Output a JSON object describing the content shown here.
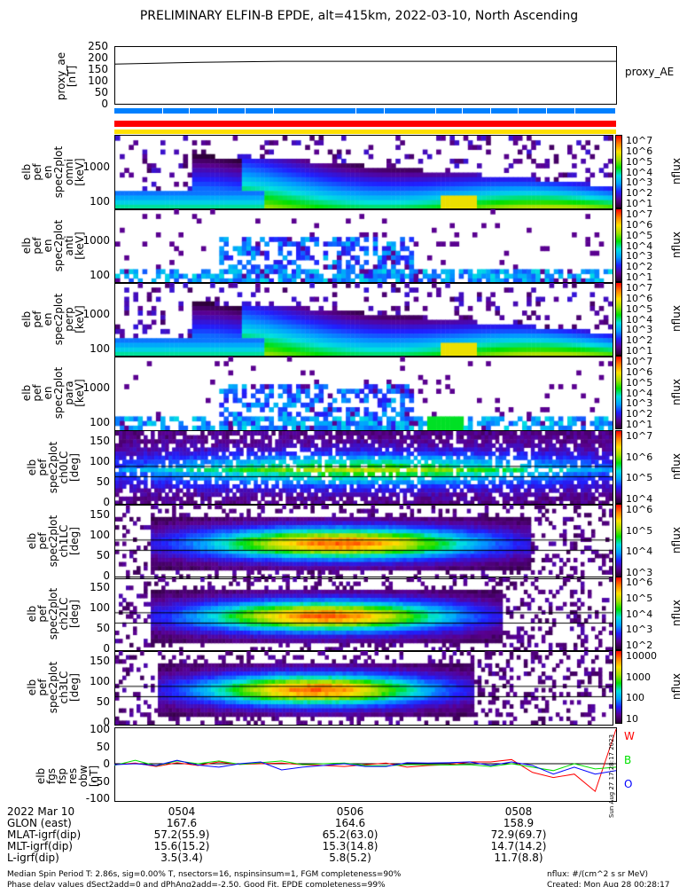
{
  "title": "PRELIMINARY ELFIN-B EPDE, alt=415km, 2022-03-10, North Ascending",
  "proxy_panel": {
    "ylabel": "proxy_ae\n[nT]",
    "legend": "proxy_AE",
    "yticks": [
      "250",
      "200",
      "150",
      "100",
      "50",
      "0"
    ]
  },
  "spec_panels": [
    {
      "ylabel": "elb\npef\nen\nspec2plot\nomni\n[keV]",
      "yticks": [
        "1000",
        "100"
      ],
      "cb_ticks": [
        "10^7",
        "10^6",
        "10^5",
        "10^4",
        "10^3",
        "10^2",
        "10^1"
      ],
      "cb_label": "nflux"
    },
    {
      "ylabel": "elb\npef\nen\nspec2plot\nanti\n[keV]",
      "yticks": [
        "1000",
        "100"
      ],
      "cb_ticks": [
        "10^7",
        "10^6",
        "10^5",
        "10^4",
        "10^3",
        "10^2",
        "10^1"
      ],
      "cb_label": "nflux"
    },
    {
      "ylabel": "elb\npef\nen\nspec2plot\nperp\n[keV]",
      "yticks": [
        "1000",
        "100"
      ],
      "cb_ticks": [
        "10^7",
        "10^6",
        "10^5",
        "10^4",
        "10^3",
        "10^2",
        "10^1"
      ],
      "cb_label": "nflux"
    },
    {
      "ylabel": "elb\npef\nen\nspec2plot\npara\n[keV]",
      "yticks": [
        "1000",
        "100"
      ],
      "cb_ticks": [
        "10^7",
        "10^6",
        "10^5",
        "10^4",
        "10^3",
        "10^2",
        "10^1"
      ],
      "cb_label": "nflux"
    }
  ],
  "pa_panels": [
    {
      "ylabel": "elb\npef\nspec2plot\nch0LC\n[deg]",
      "yticks": [
        "150",
        "100",
        "50",
        "0"
      ],
      "cb_ticks": [
        "10^7",
        "10^6",
        "10^5",
        "10^4"
      ],
      "cb_label": "nflux"
    },
    {
      "ylabel": "elb\npef\nspec2plot\nch1LC\n[deg]",
      "yticks": [
        "150",
        "100",
        "50",
        "0"
      ],
      "cb_ticks": [
        "10^6",
        "10^5",
        "10^4",
        "10^3"
      ],
      "cb_label": "nflux"
    },
    {
      "ylabel": "elb\npef\nspec2plot\nch2LC\n[deg]",
      "yticks": [
        "150",
        "100",
        "50",
        "0"
      ],
      "cb_ticks": [
        "10^6",
        "10^5",
        "10^4",
        "10^3",
        "10^2"
      ],
      "cb_label": "nflux"
    },
    {
      "ylabel": "elb\npef\nspec2plot\nch3LC\n[deg]",
      "yticks": [
        "150",
        "100",
        "50",
        "0"
      ],
      "cb_ticks": [
        "10000",
        "1000",
        "100",
        "10"
      ],
      "cb_label": "nflux"
    }
  ],
  "fgm_panel": {
    "ylabel": "elb\nfgs\nfsp\nres\nobw\n[nT]",
    "yticks": [
      "100",
      "50",
      "0",
      "-50",
      "-100"
    ],
    "legend": [
      {
        "label": "W",
        "color": "#ff0000"
      },
      {
        "label": "B",
        "color": "#00e000"
      },
      {
        "label": "O",
        "color": "#0000ff"
      }
    ],
    "side_stamp": "Sun Aug 27 17:28:17 2023"
  },
  "annotation": {
    "rows": [
      "2022 Mar 10",
      "GLON (east)",
      "MLAT-igrf(dip)",
      "MLT-igrf(dip)",
      "L-igrf(dip)"
    ],
    "columns": [
      [
        "0504",
        "167.6",
        "57.2(55.9)",
        "15.6(15.2)",
        "3.5(3.4)"
      ],
      [
        "0506",
        "164.6",
        "65.2(63.0)",
        "15.3(14.8)",
        "5.8(5.2)"
      ],
      [
        "0508",
        "158.9",
        "72.9(69.7)",
        "14.7(14.2)",
        "11.7(8.8)"
      ]
    ]
  },
  "footer": {
    "line1": "Median Spin Period T: 2.86s, sig=0.00% T, nsectors=16, nspinsinsum=1, FGM completeness=90%",
    "line2": "Phase delay values dSect2add=0 and dPhAng2add=-2.50, Good Fit, EPDE completeness=99%",
    "units": "nflux: #/(cm^2 s sr MeV)",
    "created": "Created: Mon Aug 28 00:28:17 2023"
  },
  "colors": {
    "bar_blue": "#0080ff",
    "bar_red": "#ff0000",
    "bar_yellow": "#ffe000"
  },
  "chart_data": [
    {
      "type": "line",
      "title": "proxy_AE",
      "ylabel": "proxy_ae [nT]",
      "ylim": [
        0,
        250
      ],
      "x": [
        "0503",
        "0504",
        "0505",
        "0506",
        "0507",
        "0508",
        "0509"
      ],
      "values": [
        172,
        180,
        184,
        184,
        184,
        184,
        184
      ]
    },
    {
      "type": "heatmap",
      "title": "spec2plot omni",
      "ylabel": "en [keV]",
      "yscale": "log",
      "zlim": [
        10,
        10000000.0
      ]
    },
    {
      "type": "heatmap",
      "title": "spec2plot anti",
      "ylabel": "en [keV]",
      "yscale": "log",
      "zlim": [
        10,
        10000000.0
      ]
    },
    {
      "type": "heatmap",
      "title": "spec2plot perp",
      "ylabel": "en [keV]",
      "yscale": "log",
      "zlim": [
        10,
        10000000.0
      ]
    },
    {
      "type": "heatmap",
      "title": "spec2plot para",
      "ylabel": "en [keV]",
      "yscale": "log",
      "zlim": [
        10,
        10000000.0
      ]
    },
    {
      "type": "heatmap",
      "title": "ch0LC",
      "ylabel": "[deg]",
      "ylim": [
        0,
        180
      ],
      "zlim": [
        10000.0,
        10000000.0
      ]
    },
    {
      "type": "heatmap",
      "title": "ch1LC",
      "ylabel": "[deg]",
      "ylim": [
        0,
        180
      ],
      "zlim": [
        1000.0,
        1000000.0
      ]
    },
    {
      "type": "heatmap",
      "title": "ch2LC",
      "ylabel": "[deg]",
      "ylim": [
        0,
        180
      ],
      "zlim": [
        100.0,
        1000000.0
      ]
    },
    {
      "type": "heatmap",
      "title": "ch3LC",
      "ylabel": "[deg]",
      "ylim": [
        0,
        180
      ],
      "zlim": [
        10,
        10000.0
      ]
    },
    {
      "type": "line",
      "title": "fgs res obw",
      "ylabel": "[nT]",
      "ylim": [
        -110,
        110
      ],
      "series": [
        {
          "name": "W",
          "values": [
            -3,
            2,
            -8,
            3,
            -5,
            5,
            -2,
            0,
            2,
            -3,
            -5,
            -8,
            -3,
            2,
            -10,
            -5,
            -3,
            5,
            5,
            12,
            -25,
            -40,
            -30,
            -80,
            100
          ]
        },
        {
          "name": "B",
          "values": [
            -5,
            10,
            -6,
            8,
            0,
            8,
            -2,
            3,
            8,
            -3,
            0,
            2,
            -5,
            -6,
            -3,
            -3,
            -4,
            -3,
            -8,
            0,
            -10,
            -20,
            0,
            -15,
            -10
          ]
        },
        {
          "name": "O",
          "values": [
            -3,
            0,
            -5,
            10,
            -4,
            -10,
            0,
            5,
            -18,
            -10,
            -5,
            0,
            -8,
            -8,
            3,
            2,
            3,
            5,
            -5,
            5,
            -5,
            -30,
            -10,
            -30,
            -20
          ]
        }
      ]
    }
  ]
}
